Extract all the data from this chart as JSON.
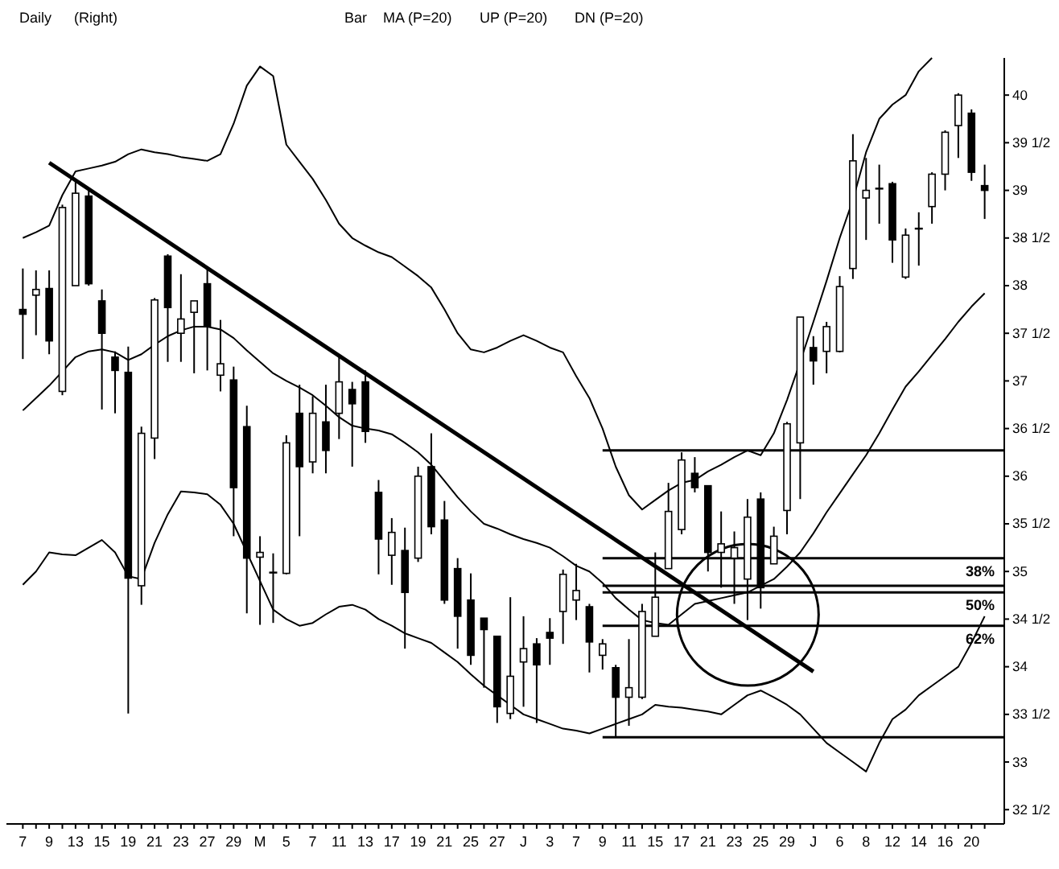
{
  "chart_data": {
    "type": "candlestick",
    "title": "Daily",
    "annotations": [
      "(Right)",
      "Bar",
      "MA (P=20)",
      "UP (P=20)",
      "DN (P=20)",
      {
        "text": "38%",
        "y": 35.14
      },
      {
        "text": "50%",
        "y": 34.78
      },
      {
        "text": "62%",
        "y": 34.43
      }
    ],
    "categories": [
      "7",
      null,
      "9",
      null,
      "13",
      null,
      "15",
      null,
      "19",
      null,
      "21",
      null,
      "23",
      null,
      "27",
      null,
      "29",
      null,
      "M",
      null,
      "5",
      null,
      "7",
      null,
      "11",
      null,
      "13",
      null,
      "17",
      null,
      "19",
      null,
      "21",
      null,
      "25",
      null,
      "27",
      null,
      "J",
      null,
      "3",
      null,
      "7",
      null,
      "9",
      null,
      "11",
      null,
      "15",
      null,
      "17",
      null,
      "21",
      null,
      "23",
      null,
      "25",
      null,
      "29",
      null,
      "J",
      null,
      "6",
      null,
      "8",
      null,
      "12",
      null,
      "14",
      null,
      "16",
      null,
      "20",
      null
    ],
    "ohlc": [
      [
        37.75,
        38.18,
        37.23,
        37.7
      ],
      [
        37.9,
        38.16,
        37.48,
        37.96
      ],
      [
        37.97,
        38.16,
        37.28,
        37.42
      ],
      [
        36.89,
        38.85,
        36.85,
        38.82
      ],
      [
        38.0,
        39.1,
        38.0,
        38.97
      ],
      [
        38.94,
        39.0,
        38.0,
        38.02
      ],
      [
        37.84,
        37.96,
        36.7,
        37.5
      ],
      [
        37.25,
        37.31,
        36.66,
        37.11
      ],
      [
        37.09,
        37.36,
        33.51,
        34.93
      ],
      [
        34.85,
        36.52,
        34.65,
        36.45
      ],
      [
        36.4,
        37.87,
        36.18,
        37.85
      ],
      [
        38.31,
        38.33,
        37.2,
        37.77
      ],
      [
        37.5,
        38.12,
        37.2,
        37.65
      ],
      [
        37.72,
        37.84,
        37.08,
        37.84
      ],
      [
        38.02,
        38.19,
        37.11,
        37.57
      ],
      [
        37.06,
        37.64,
        36.89,
        37.18
      ],
      [
        37.01,
        37.15,
        35.37,
        35.88
      ],
      [
        36.52,
        36.74,
        34.56,
        35.14
      ],
      [
        35.15,
        35.37,
        34.44,
        35.2
      ],
      [
        34.98,
        35.19,
        34.46,
        34.99
      ],
      [
        34.98,
        36.43,
        34.97,
        36.35
      ],
      [
        36.66,
        36.96,
        35.37,
        36.1
      ],
      [
        36.15,
        36.84,
        36.03,
        36.66
      ],
      [
        36.57,
        36.96,
        36.03,
        36.27
      ],
      [
        36.66,
        37.25,
        36.39,
        36.99
      ],
      [
        36.91,
        36.99,
        36.1,
        36.76
      ],
      [
        36.99,
        37.11,
        36.35,
        36.47
      ],
      [
        35.83,
        35.96,
        34.97,
        35.34
      ],
      [
        35.17,
        35.56,
        34.86,
        35.41
      ],
      [
        35.22,
        35.46,
        34.19,
        34.78
      ],
      [
        35.14,
        36.1,
        35.1,
        36.0
      ],
      [
        36.1,
        36.45,
        35.39,
        35.47
      ],
      [
        35.54,
        35.74,
        34.66,
        34.7
      ],
      [
        35.03,
        35.14,
        34.19,
        34.53
      ],
      [
        34.7,
        34.98,
        34.02,
        34.12
      ],
      [
        34.51,
        34.51,
        33.78,
        34.39
      ],
      [
        34.32,
        34.32,
        33.41,
        33.58
      ],
      [
        33.51,
        34.73,
        33.45,
        33.9
      ],
      [
        34.05,
        34.53,
        33.58,
        34.19
      ],
      [
        34.24,
        34.3,
        33.41,
        34.02
      ],
      [
        34.36,
        34.51,
        34.02,
        34.3
      ],
      [
        34.58,
        35.02,
        34.24,
        34.97
      ],
      [
        34.7,
        35.08,
        34.49,
        34.8
      ],
      [
        34.63,
        34.66,
        33.94,
        34.26
      ],
      [
        34.12,
        34.29,
        33.97,
        34.24
      ],
      [
        33.99,
        34.02,
        33.26,
        33.68
      ],
      [
        33.68,
        34.29,
        33.38,
        33.78
      ],
      [
        33.68,
        34.66,
        33.66,
        34.58
      ],
      [
        34.32,
        35.2,
        34.32,
        34.73
      ],
      [
        35.03,
        35.93,
        35.03,
        35.63
      ],
      [
        35.44,
        36.25,
        35.39,
        36.17
      ],
      [
        36.03,
        36.2,
        35.83,
        35.88
      ],
      [
        35.9,
        35.9,
        35.0,
        35.2
      ],
      [
        35.2,
        35.63,
        34.83,
        35.29
      ],
      [
        35.14,
        35.42,
        34.66,
        35.25
      ],
      [
        34.92,
        35.76,
        34.49,
        35.57
      ],
      [
        35.76,
        35.83,
        34.61,
        34.83
      ],
      [
        35.08,
        35.47,
        35.08,
        35.37
      ],
      [
        35.64,
        36.57,
        35.39,
        36.55
      ],
      [
        36.35,
        37.67,
        35.76,
        37.67
      ],
      [
        37.35,
        37.47,
        36.96,
        37.21
      ],
      [
        37.31,
        37.62,
        37.08,
        37.57
      ],
      [
        37.31,
        38.1,
        37.3,
        37.99
      ],
      [
        38.18,
        39.59,
        38.07,
        39.31
      ],
      [
        38.92,
        39.34,
        38.48,
        39.0
      ],
      [
        39.02,
        39.27,
        38.65,
        39.02
      ],
      [
        39.07,
        39.09,
        38.24,
        38.48
      ],
      [
        38.09,
        38.6,
        38.07,
        38.53
      ],
      [
        38.6,
        38.77,
        38.21,
        38.6
      ],
      [
        38.83,
        39.19,
        38.65,
        39.17
      ],
      [
        39.17,
        39.63,
        39.0,
        39.61
      ],
      [
        39.68,
        40.02,
        39.34,
        40.0
      ],
      [
        39.81,
        39.85,
        39.1,
        39.19
      ],
      [
        39.05,
        39.27,
        38.7,
        39.0
      ]
    ],
    "series": [
      {
        "type": "line",
        "color": "#000000",
        "values": [
          36.69,
          36.82,
          36.95,
          37.1,
          37.25,
          37.31,
          37.33,
          37.3,
          37.22,
          37.28,
          37.38,
          37.47,
          37.53,
          37.57,
          37.57,
          37.54,
          37.45,
          37.32,
          37.2,
          37.08,
          37.0,
          36.93,
          36.85,
          36.74,
          36.62,
          36.53,
          36.5,
          36.48,
          36.44,
          36.35,
          36.25,
          36.12,
          35.95,
          35.78,
          35.63,
          35.5,
          35.45,
          35.39,
          35.34,
          35.3,
          35.25,
          35.16,
          35.06,
          35.0,
          34.88,
          34.72,
          34.6,
          34.49,
          34.46,
          34.44,
          34.55,
          34.66,
          34.69,
          34.72,
          34.75,
          34.78,
          34.85,
          34.92,
          35.05,
          35.2,
          35.4,
          35.62,
          35.82,
          36.02,
          36.22,
          36.45,
          36.7,
          36.94,
          37.1,
          37.27,
          37.44,
          37.62,
          37.78,
          37.92
        ]
      },
      {
        "type": "line",
        "color": "#000000",
        "values": [
          38.5,
          38.56,
          38.63,
          38.95,
          39.2,
          39.23,
          39.26,
          39.3,
          39.38,
          39.43,
          39.4,
          39.38,
          39.35,
          39.33,
          39.31,
          39.38,
          39.7,
          40.1,
          40.3,
          40.2,
          39.48,
          39.3,
          39.12,
          38.9,
          38.65,
          38.5,
          38.42,
          38.35,
          38.3,
          38.2,
          38.1,
          37.98,
          37.75,
          37.5,
          37.33,
          37.3,
          37.35,
          37.42,
          37.48,
          37.42,
          37.35,
          37.3,
          37.05,
          36.82,
          36.5,
          36.1,
          35.8,
          35.65,
          35.75,
          35.85,
          35.93,
          35.96,
          36.05,
          36.12,
          36.2,
          36.27,
          36.22,
          36.45,
          36.8,
          37.2,
          37.62,
          38.05,
          38.5,
          38.9,
          39.4,
          39.75,
          39.9,
          40.0,
          40.25,
          40.39,
          null,
          null,
          null,
          null
        ]
      },
      {
        "type": "line",
        "color": "#000000",
        "values": [
          34.86,
          35.0,
          35.2,
          35.18,
          35.17,
          35.25,
          35.33,
          35.2,
          34.95,
          34.92,
          35.3,
          35.6,
          35.84,
          35.83,
          35.81,
          35.7,
          35.5,
          35.2,
          34.9,
          34.6,
          34.5,
          34.43,
          34.46,
          34.55,
          34.63,
          34.65,
          34.6,
          34.5,
          34.43,
          34.35,
          34.3,
          34.25,
          34.15,
          34.05,
          33.92,
          33.8,
          33.7,
          33.6,
          33.5,
          33.45,
          33.4,
          33.35,
          33.33,
          33.3,
          33.35,
          33.4,
          33.45,
          33.5,
          33.6,
          33.58,
          33.57,
          33.55,
          33.53,
          33.5,
          33.6,
          33.7,
          33.75,
          33.68,
          33.6,
          33.5,
          33.35,
          33.2,
          33.1,
          33.0,
          32.9,
          33.2,
          33.45,
          33.55,
          33.7,
          33.8,
          33.9,
          34.0,
          34.25,
          34.53
        ]
      },
      {
        "type": "line",
        "color": "#000000",
        "values": [
          null,
          null,
          39.29,
          null,
          null,
          null,
          null,
          null,
          null,
          null,
          null,
          null,
          null,
          null,
          null,
          null,
          null,
          null,
          null,
          null,
          null,
          null,
          null,
          null,
          null,
          null,
          null,
          null,
          null,
          null,
          null,
          null,
          null,
          null,
          null,
          null,
          null,
          null,
          null,
          null,
          null,
          null,
          null,
          null,
          null,
          null,
          null,
          null,
          null,
          null,
          null,
          null,
          null,
          null,
          null,
          null,
          null,
          null,
          null,
          null,
          33.95,
          null,
          null,
          null,
          null,
          null,
          null,
          null,
          null,
          null,
          null,
          null,
          null,
          null
        ]
      }
    ],
    "ylim": [
      32.35,
      40.39
    ],
    "yticks": [
      {
        "value": 32.5,
        "label": "32 1/2"
      },
      33,
      {
        "value": 33.5,
        "label": "33 1/2"
      },
      34,
      {
        "value": 34.5,
        "label": "34 1/2"
      },
      35,
      {
        "value": 35.5,
        "label": "35 1/2"
      },
      36,
      {
        "value": 36.5,
        "label": "36 1/2"
      },
      37,
      {
        "value": 37.5,
        "label": "37 1/2"
      },
      38,
      {
        "value": 38.5,
        "label": "38 1/2"
      },
      39,
      {
        "value": 39.5,
        "label": "39 1/2"
      },
      40
    ],
    "ref_lines": [
      {
        "axis": "y",
        "value": 36.27,
        "label": null
      },
      {
        "axis": "y",
        "value": 35.14,
        "label": null
      },
      {
        "axis": "y",
        "value": 34.85,
        "label": null
      },
      {
        "axis": "y",
        "value": 34.78,
        "label": null
      },
      {
        "axis": "y",
        "value": 34.43,
        "label": null
      },
      {
        "axis": "y",
        "value": 33.26,
        "label": null
      }
    ]
  }
}
